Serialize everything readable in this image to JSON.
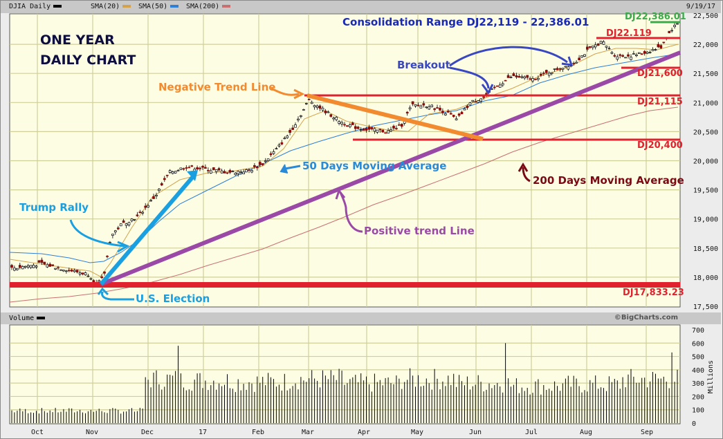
{
  "header": {
    "series_label": "DJIA Daily",
    "series_color": "#000000",
    "sma20_label": "SMA(20)",
    "sma20_color": "#d2a24c",
    "sma50_label": "SMA(50)",
    "sma50_color": "#2f7fd6",
    "sma200_label": "SMA(200)",
    "sma200_color": "#c87070",
    "date": "9/19/17"
  },
  "volume_header": {
    "label": "Volume",
    "copyright": "©BigCharts.com"
  },
  "annotations": {
    "title_line1": "ONE YEAR",
    "title_line2": "DAILY CHART",
    "consolidation": "Consolidation Range DJ22,119 - 22,386.01",
    "negative_trend": "Negative Trend Line",
    "breakout": "Breakout",
    "ma50": "50 Days Moving Average",
    "ma200": "200 Days Moving Average",
    "trump_rally": "Trump Rally",
    "positive_trend": "Positive trend Line",
    "us_election": "U.S. Election",
    "level_22386": "DJ22,386.01",
    "level_22119": "DJ22.119",
    "level_21600": "DJ21,600",
    "level_21115": "DJ21,115",
    "level_20400": "DJ20,400",
    "level_17833": "DJ17,833.23"
  },
  "colors": {
    "plot_bg": "#fdfde4",
    "grid": "#cfcf9a",
    "support_red": "#e0222e",
    "green_level": "#3aaa4a",
    "negative_trend": "#f28a30",
    "positive_trend": "#9a4aa6",
    "rally_arrow": "#1a9fe0",
    "annotation_navy": "#0d0d40",
    "consolidation_blue": "#1a2ab8",
    "breakout_blue": "#3a48c0",
    "ma50_text": "#2a8ad8",
    "ma200_text": "#7a0a14",
    "up_candle": "#ffffff",
    "down_candle": "#8b0a0a"
  },
  "chart_data": [
    {
      "type": "line",
      "title": "DJIA Daily - One Year Daily Chart",
      "subtitle": "Consolidation Range DJ22,119 - 22,386.01",
      "xlabel": "",
      "ylabel": "",
      "x_ticks": [
        "Oct",
        "Nov",
        "Dec",
        "17",
        "Feb",
        "Mar",
        "Apr",
        "May",
        "Jun",
        "Jul",
        "Aug",
        "Sep"
      ],
      "y_ticks": [
        17500,
        18000,
        18500,
        19000,
        19500,
        20000,
        20500,
        21000,
        21500,
        22000,
        22500
      ],
      "ylim": [
        17500,
        22500
      ],
      "grid": true,
      "legend": [
        "DJIA Daily",
        "SMA(20)",
        "SMA(50)",
        "SMA(200)"
      ],
      "legend_position": "top",
      "end_date": "9/19/17",
      "series": [
        {
          "name": "DJIA Daily (approx close)",
          "x": [
            "Oct",
            "Nov",
            "Nov-8",
            "Dec",
            "17",
            "Feb",
            "Mar",
            "Apr",
            "May",
            "Jun",
            "Jul",
            "Aug",
            "Sep",
            "9/19"
          ],
          "values": [
            18200,
            18100,
            17900,
            19150,
            19800,
            19900,
            21000,
            20650,
            20950,
            21200,
            21450,
            21850,
            21800,
            22370
          ]
        },
        {
          "name": "SMA(50) (approx)",
          "x": [
            "Oct",
            "Nov",
            "Dec",
            "17",
            "Feb",
            "Mar",
            "Apr",
            "May",
            "Jun",
            "Jul",
            "Aug",
            "Sep",
            "9/19"
          ],
          "values": [
            18350,
            18250,
            18500,
            19300,
            19850,
            20300,
            20600,
            20750,
            20950,
            21250,
            21500,
            21700,
            21850
          ]
        },
        {
          "name": "SMA(200) (approx)",
          "x": [
            "Oct",
            "Nov",
            "Dec",
            "17",
            "Feb",
            "Mar",
            "Apr",
            "May",
            "Jun",
            "Jul",
            "Aug",
            "Sep",
            "9/19"
          ],
          "values": [
            17550,
            17700,
            17850,
            18100,
            18400,
            18750,
            19100,
            19450,
            19800,
            20100,
            20400,
            20700,
            20950
          ]
        }
      ],
      "levels": [
        {
          "label": "DJ22,386.01",
          "value": 22386.01
        },
        {
          "label": "DJ22.119",
          "value": 22119
        },
        {
          "label": "DJ21,600",
          "value": 21600
        },
        {
          "label": "DJ21,115",
          "value": 21115
        },
        {
          "label": "DJ20,400",
          "value": 20400
        },
        {
          "label": "DJ17,833.23",
          "value": 17833.23
        }
      ],
      "annotations": [
        "ONE YEAR DAILY CHART",
        "Negative Trend Line",
        "Breakout",
        "50 Days Moving Average",
        "200 Days Moving Average",
        "Trump Rally",
        "Positive trend Line",
        "U.S. Election"
      ]
    },
    {
      "type": "bar",
      "title": "Volume",
      "ylabel": "Millions",
      "y_ticks": [
        0,
        100,
        200,
        300,
        400,
        500,
        600,
        700
      ],
      "ylim": [
        0,
        700
      ],
      "categories": [
        "Oct",
        "Nov",
        "Dec",
        "17",
        "Feb",
        "Mar",
        "Apr",
        "May",
        "Jun",
        "Jul",
        "Aug",
        "Sep"
      ],
      "values": [
        90,
        90,
        330,
        320,
        310,
        330,
        300,
        330,
        300,
        280,
        290,
        330
      ],
      "peaks": [
        {
          "x": "Dec",
          "value": 580
        },
        {
          "x": "Jun",
          "value": 600
        },
        {
          "x": "Sep",
          "value": 530
        }
      ]
    }
  ]
}
